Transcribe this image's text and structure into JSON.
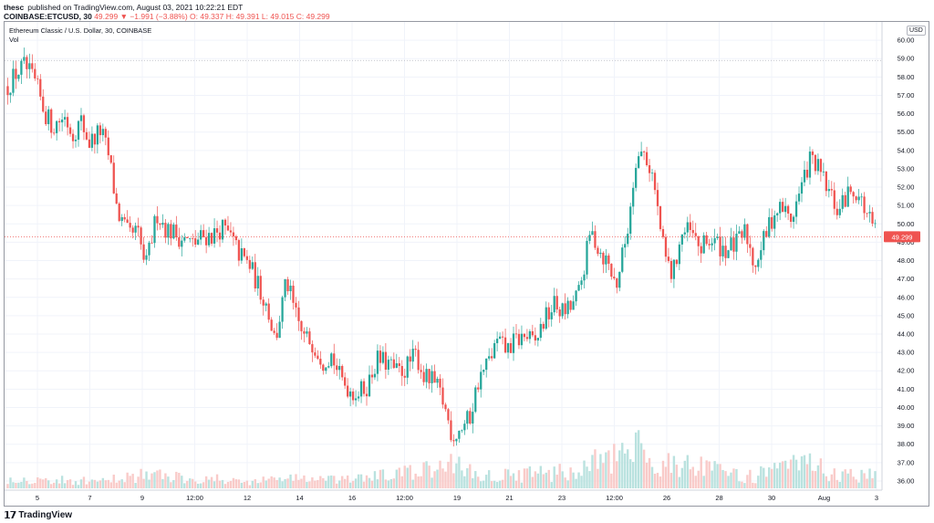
{
  "header": {
    "author": "thesc",
    "published": "published on TradingView.com, August 03, 2021 10:22:21 EDT",
    "symbol": "COINBASE:ETCUSD, 30",
    "ohlc": "49.299 ▼ −1.991 (−3.88%) O: 49.337 H: 49.391 L: 49.015 C: 49.299"
  },
  "legend": {
    "title": "Ethereum Classic / U.S. Dollar, 30, COINBASE",
    "volume_label": "Vol"
  },
  "currency": "USD",
  "footer": {
    "logo": "𝟭𝟳",
    "brand": "TradingView"
  },
  "colors": {
    "up": "#26a69a",
    "down": "#ef5350",
    "price_line": "#ef5350",
    "grid": "#f0f3fa",
    "axis_text": "#131722"
  },
  "chart_data": {
    "type": "candlestick",
    "title": "Ethereum Classic / U.S. Dollar, 30, COINBASE",
    "ylim": [
      35.5,
      61
    ],
    "y_ticks": [
      36,
      37,
      38,
      39,
      40,
      41,
      42,
      43,
      44,
      45,
      46,
      47,
      48,
      49,
      50,
      51,
      52,
      53,
      54,
      55,
      56,
      57,
      58,
      59,
      60
    ],
    "x_ticks": [
      "5",
      "7",
      "9",
      "12:00",
      "12",
      "14",
      "16",
      "12:00",
      "19",
      "21",
      "23",
      "12:00",
      "26",
      "28",
      "30",
      "Aug",
      "3"
    ],
    "last_price": "49.299",
    "last_price_value": 49.299,
    "reference_level": 58.9,
    "grid": true,
    "price_path": [
      [
        0,
        57.5
      ],
      [
        3,
        58.2
      ],
      [
        6,
        58.6
      ],
      [
        10,
        57.6
      ],
      [
        13,
        56.1
      ],
      [
        16,
        55.3
      ],
      [
        20,
        55.9
      ],
      [
        23,
        54.9
      ],
      [
        26,
        55.6
      ],
      [
        29,
        54.4
      ],
      [
        33,
        55.1
      ],
      [
        36,
        53.6
      ],
      [
        39,
        50.6
      ],
      [
        43,
        49.3
      ],
      [
        46,
        49.6
      ],
      [
        49,
        47.6
      ],
      [
        53,
        50.6
      ],
      [
        56,
        49.8
      ],
      [
        60,
        49.4
      ],
      [
        63,
        49.1
      ],
      [
        66,
        48.9
      ],
      [
        69,
        49.3
      ],
      [
        73,
        49.4
      ],
      [
        76,
        49.8
      ],
      [
        79,
        49.3
      ],
      [
        82,
        48.4
      ],
      [
        86,
        47.7
      ],
      [
        89,
        46.6
      ],
      [
        92,
        45.6
      ],
      [
        95,
        43.6
      ],
      [
        99,
        46.9
      ],
      [
        102,
        45.1
      ],
      [
        105,
        43.8
      ],
      [
        108,
        43.6
      ],
      [
        112,
        42.6
      ],
      [
        115,
        42.9
      ],
      [
        118,
        41.6
      ],
      [
        122,
        40.9
      ],
      [
        125,
        40.8
      ],
      [
        128,
        41.3
      ],
      [
        131,
        42.6
      ],
      [
        135,
        42.4
      ],
      [
        138,
        41.9
      ],
      [
        141,
        42.1
      ],
      [
        145,
        42.9
      ],
      [
        148,
        41.6
      ],
      [
        151,
        41.4
      ],
      [
        154,
        40.6
      ],
      [
        158,
        38.4
      ],
      [
        161,
        38.9
      ],
      [
        164,
        39.4
      ],
      [
        167,
        41.4
      ],
      [
        171,
        42.6
      ],
      [
        174,
        43.6
      ],
      [
        177,
        43.1
      ],
      [
        180,
        43.6
      ],
      [
        184,
        43.9
      ],
      [
        187,
        43.4
      ],
      [
        190,
        44.6
      ],
      [
        194,
        45.6
      ],
      [
        197,
        45.2
      ],
      [
        200,
        45.4
      ],
      [
        203,
        46.3
      ],
      [
        207,
        49.6
      ],
      [
        210,
        48.6
      ],
      [
        213,
        47.9
      ],
      [
        216,
        46.6
      ],
      [
        220,
        49.6
      ],
      [
        223,
        53.6
      ],
      [
        226,
        53.9
      ],
      [
        229,
        52.6
      ],
      [
        233,
        48.4
      ],
      [
        236,
        47.1
      ],
      [
        239,
        49.4
      ],
      [
        242,
        49.6
      ],
      [
        246,
        48.6
      ],
      [
        249,
        49.1
      ],
      [
        252,
        48.9
      ],
      [
        255,
        48.6
      ],
      [
        259,
        48.9
      ],
      [
        262,
        49.6
      ],
      [
        265,
        47.8
      ],
      [
        268,
        48.9
      ],
      [
        272,
        50.6
      ],
      [
        275,
        50.9
      ],
      [
        278,
        50.2
      ],
      [
        281,
        51.6
      ],
      [
        285,
        53.6
      ],
      [
        288,
        52.9
      ],
      [
        291,
        51.9
      ],
      [
        295,
        50.6
      ],
      [
        298,
        51.6
      ],
      [
        301,
        51.9
      ],
      [
        304,
        50.9
      ],
      [
        308,
        49.5
      ]
    ],
    "volume_profile": [
      [
        0,
        0.18
      ],
      [
        16,
        0.15
      ],
      [
        36,
        0.12
      ],
      [
        39,
        0.2
      ],
      [
        49,
        0.25
      ],
      [
        86,
        0.12
      ],
      [
        99,
        0.2
      ],
      [
        118,
        0.14
      ],
      [
        154,
        0.35
      ],
      [
        158,
        0.5
      ],
      [
        167,
        0.22
      ],
      [
        203,
        0.3
      ],
      [
        207,
        0.45
      ],
      [
        220,
        0.55
      ],
      [
        223,
        0.75
      ],
      [
        229,
        0.4
      ],
      [
        233,
        0.5
      ],
      [
        262,
        0.2
      ],
      [
        272,
        0.3
      ],
      [
        285,
        0.45
      ],
      [
        295,
        0.2
      ],
      [
        308,
        0.3
      ]
    ]
  }
}
